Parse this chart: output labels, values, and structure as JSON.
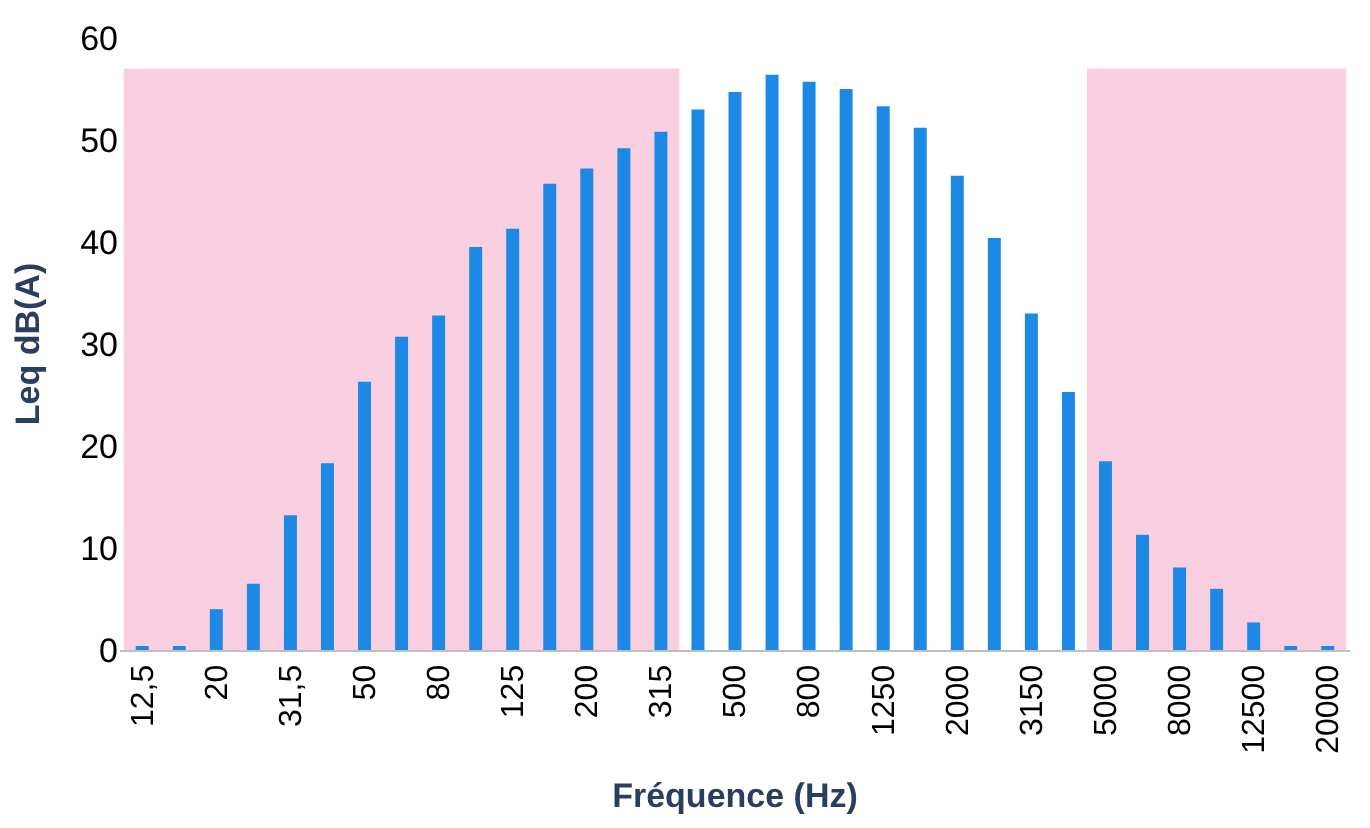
{
  "chart_data": {
    "type": "bar",
    "xlabel": "Fréquence (Hz)",
    "ylabel": "Leq dB(A)",
    "categories": [
      "12,5",
      null,
      "20",
      null,
      "31,5",
      null,
      "50",
      null,
      "80",
      null,
      "125",
      null,
      "200",
      null,
      "315",
      null,
      "500",
      null,
      "800",
      null,
      "1250",
      null,
      "2000",
      null,
      "3150",
      null,
      "5000",
      null,
      "8000",
      null,
      "12500",
      null,
      "20000"
    ],
    "values": [
      0.2,
      0.2,
      4.0,
      6.5,
      13.2,
      18.3,
      26.3,
      30.7,
      32.8,
      39.5,
      41.3,
      45.7,
      47.2,
      49.2,
      50.8,
      53.0,
      54.7,
      56.4,
      55.7,
      55.0,
      53.3,
      51.2,
      46.5,
      40.4,
      33.0,
      25.3,
      18.5,
      11.3,
      8.1,
      6.0,
      2.7,
      0.2,
      0.2
    ],
    "color": "#1e88e5",
    "ylim": [
      0,
      60
    ],
    "yticks": [
      0,
      10,
      20,
      30,
      40,
      50,
      60
    ],
    "grid": false,
    "bands": [
      {
        "axis": "x",
        "from": "12,5",
        "to": "315",
        "color": "#f8d0e2"
      },
      {
        "axis": "x",
        "from": "5000",
        "to": "20000",
        "color": "#f8d0e2"
      }
    ]
  }
}
